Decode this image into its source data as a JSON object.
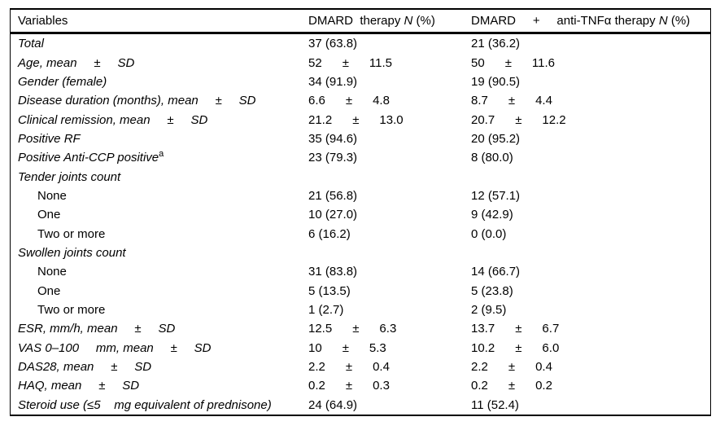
{
  "table": {
    "header": {
      "col1": "Variables",
      "col2_pre": "DMARD  therapy ",
      "col2_n": "N",
      "col2_post": " (%)",
      "col3_pre": "DMARD     +     anti-TNFα therapy ",
      "col3_n": "N",
      "col3_post": " (%)"
    },
    "rows": [
      {
        "label": "Total",
        "col1": "37 (63.8)",
        "col2": "21 (36.2)"
      },
      {
        "label": "Age, mean     ±     SD",
        "col1": "52      ±      11.5",
        "col2": "50      ±      11.6"
      },
      {
        "label": "Gender (female)",
        "col1": "34 (91.9)",
        "col2": "19 (90.5)"
      },
      {
        "label": "Disease duration (months), mean     ±     SD",
        "col1": "6.6      ±      4.8",
        "col2": "8.7      ±      4.4"
      },
      {
        "label": "Clinical remission, mean     ±     SD",
        "col1": "21.2      ±      13.0",
        "col2": "20.7      ±      12.2"
      },
      {
        "label": "Positive RF",
        "col1": "35 (94.6)",
        "col2": "20 (95.2)"
      },
      {
        "label": "Positive Anti-CCP positive",
        "sup": "a",
        "col1": "23 (79.3)",
        "col2": "8 (80.0)"
      },
      {
        "label": "Tender joints count",
        "col1": "",
        "col2": ""
      },
      {
        "label": "None",
        "col1": "21 (56.8)",
        "col2": "12 (57.1)"
      },
      {
        "label": "One",
        "col1": "10 (27.0)",
        "col2": "9 (42.9)"
      },
      {
        "label": "Two or more",
        "col1": "6 (16.2)",
        "col2": "0 (0.0)"
      },
      {
        "label": "Swollen joints count",
        "col1": "",
        "col2": ""
      },
      {
        "label": "None",
        "col1": "31 (83.8)",
        "col2": "14 (66.7)"
      },
      {
        "label": "One",
        "col1": "5 (13.5)",
        "col2": "5 (23.8)"
      },
      {
        "label": "Two or more",
        "col1": "1 (2.7)",
        "col2": "2 (9.5)"
      },
      {
        "label": "ESR, mm/h, mean     ±     SD",
        "col1": "12.5      ±      6.3",
        "col2": "13.7      ±      6.7"
      },
      {
        "label": "VAS 0–100     mm, mean     ±     SD",
        "col1": "10      ±      5.3",
        "col2": "10.2      ±      6.0"
      },
      {
        "label": "DAS28, mean     ±     SD",
        "col1": "2.2      ±      0.4",
        "col2": "2.2      ±      0.4"
      },
      {
        "label": "HAQ, mean     ±     SD",
        "col1": "0.2      ±      0.3",
        "col2": "0.2      ±      0.2"
      },
      {
        "label": "Steroid use (≤5    mg equivalent of prednisone)",
        "col1": "24 (64.9)",
        "col2": "11 (52.4)"
      }
    ]
  }
}
